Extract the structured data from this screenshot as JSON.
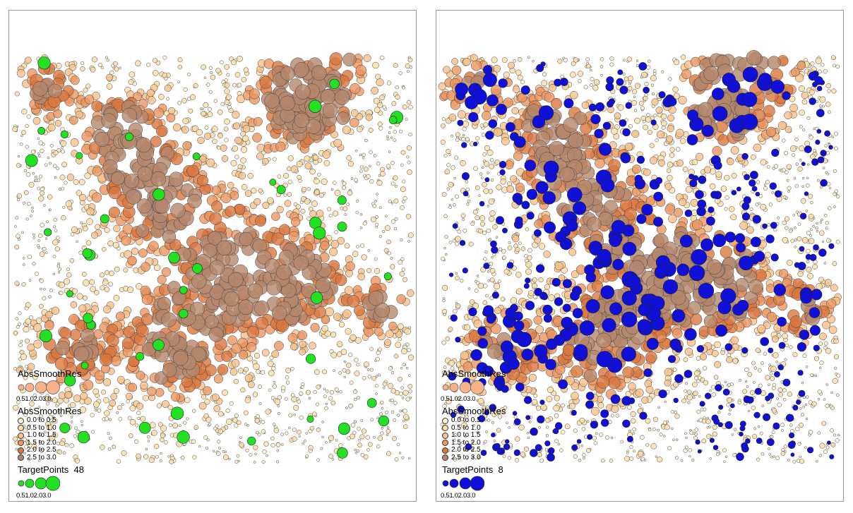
{
  "maps": [
    {
      "id": "left",
      "overlay_color": "#22e022",
      "residual_legend": {
        "title": "AbsSmoothRes",
        "size_ticks": [
          "0.5",
          "1.0",
          "2.0",
          "3.0"
        ]
      },
      "class_legend": {
        "title": "AbsSmoothRes",
        "classes": [
          {
            "label": "0.0 to 0.5",
            "color": "#fdf3cf"
          },
          {
            "label": "0.5 to 1.0",
            "color": "#fbdca6"
          },
          {
            "label": "1.0 to 1.5",
            "color": "#f8c08a"
          },
          {
            "label": "1.5 to 2.0",
            "color": "#eb9560"
          },
          {
            "label": "2.0 to 2.5",
            "color": "#d9773e"
          },
          {
            "label": "2.5 to 3.0",
            "color": "#b4876d"
          }
        ]
      },
      "target_legend": {
        "title": "TargetPoints",
        "count": "48",
        "size_ticks": [
          "0.5",
          "1.0",
          "2.0",
          "3.0"
        ]
      }
    },
    {
      "id": "right",
      "overlay_color": "#1010d8",
      "residual_legend": {
        "title": "AbsSmoothRes",
        "size_ticks": [
          "0.5",
          "1.0",
          "2.0",
          "3.0"
        ]
      },
      "class_legend": {
        "title": "AbsSmoothRes",
        "classes": [
          {
            "label": "0.0 to 0.5",
            "color": "#fdf3cf"
          },
          {
            "label": "0.5 to 1.0",
            "color": "#fbdca6"
          },
          {
            "label": "1.0 to 1.5",
            "color": "#f8c08a"
          },
          {
            "label": "1.5 to 2.0",
            "color": "#eb9560"
          },
          {
            "label": "2.0 to 2.5",
            "color": "#d9773e"
          },
          {
            "label": "2.5 to 3.0",
            "color": "#b4876d"
          }
        ]
      },
      "target_legend": {
        "title": "TargetPoints",
        "count": "8",
        "size_ticks": [
          "0.5",
          "1.0",
          "2.0",
          "3.0"
        ]
      }
    }
  ]
}
